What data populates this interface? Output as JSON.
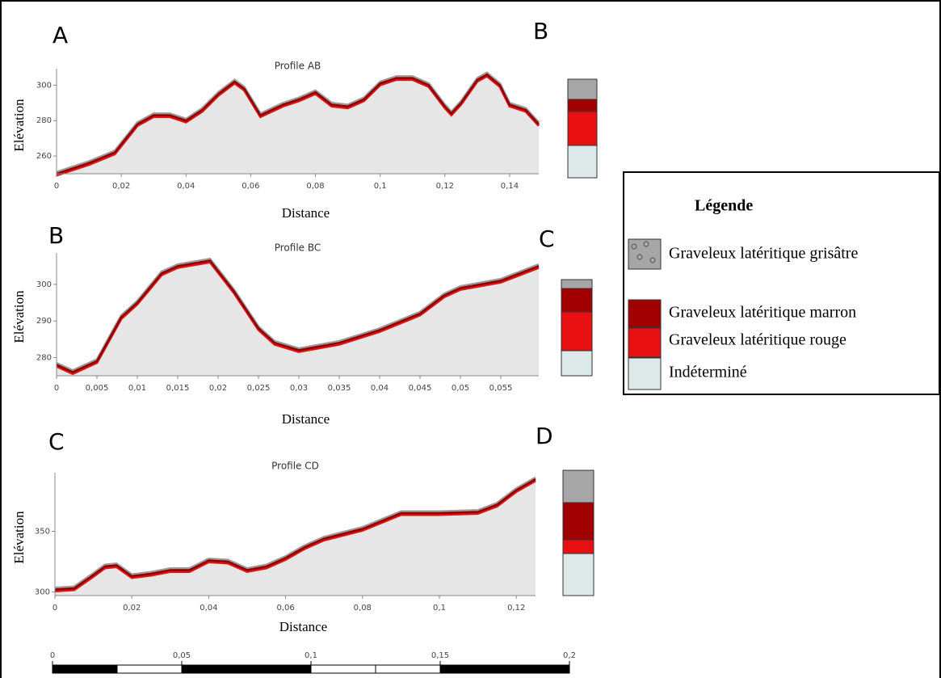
{
  "chart_data": [
    {
      "type": "area",
      "title": "Profile AB",
      "corner_labels": [
        "A",
        "B"
      ],
      "xlabel": "Distance",
      "ylabel": "Elévation",
      "x": [
        0,
        0.01,
        0.018,
        0.025,
        0.03,
        0.035,
        0.04,
        0.045,
        0.05,
        0.055,
        0.058,
        0.063,
        0.07,
        0.075,
        0.08,
        0.085,
        0.09,
        0.095,
        0.1,
        0.105,
        0.11,
        0.115,
        0.12,
        0.122,
        0.125,
        0.13,
        0.133,
        0.137,
        0.14,
        0.145,
        0.149
      ],
      "values": [
        250,
        256,
        262,
        278,
        283,
        283,
        280,
        286,
        295,
        302,
        298,
        283,
        289,
        292,
        296,
        289,
        288,
        292,
        301,
        304,
        304,
        300,
        288,
        284,
        290,
        303,
        306,
        300,
        289,
        286,
        278
      ],
      "xlim": [
        0,
        0.149
      ],
      "ylim": [
        250,
        307
      ],
      "xticks": [
        0,
        {
          "value": 0.02,
          "label": "0,02"
        },
        {
          "value": 0.04,
          "label": "0,04"
        },
        {
          "value": 0.06,
          "label": "0,06"
        },
        {
          "value": 0.08,
          "label": "0,08"
        },
        {
          "value": 0.1,
          "label": "0,1"
        },
        {
          "value": 0.12,
          "label": "0,12"
        },
        {
          "value": 0.14,
          "label": "0,14"
        }
      ],
      "yticks": [
        260,
        280,
        300
      ],
      "color": "#e6e6e6"
    },
    {
      "type": "area",
      "title": "Profile BC",
      "corner_labels": [
        "B",
        "C"
      ],
      "xlabel": "Distance",
      "ylabel": "Elévation",
      "x": [
        0,
        0.002,
        0.005,
        0.008,
        0.01,
        0.013,
        0.015,
        0.019,
        0.022,
        0.025,
        0.027,
        0.03,
        0.035,
        0.04,
        0.045,
        0.048,
        0.05,
        0.055,
        0.0597
      ],
      "values": [
        278,
        276,
        279,
        291,
        295,
        303,
        305,
        306.5,
        298,
        288,
        284,
        282,
        284,
        287.5,
        292,
        297,
        299,
        301,
        305
      ],
      "xlim": [
        0,
        0.0597
      ],
      "ylim": [
        275,
        307.5
      ],
      "xticks": [
        0,
        {
          "value": 0.005,
          "label": "0,005"
        },
        {
          "value": 0.01,
          "label": "0,01"
        },
        {
          "value": 0.015,
          "label": "0,015"
        },
        {
          "value": 0.02,
          "label": "0,02"
        },
        {
          "value": 0.025,
          "label": "0,025"
        },
        {
          "value": 0.03,
          "label": "0,03"
        },
        {
          "value": 0.035,
          "label": "0,035"
        },
        {
          "value": 0.04,
          "label": "0,04"
        },
        {
          "value": 0.045,
          "label": "0,045"
        },
        {
          "value": 0.05,
          "label": "0,05"
        },
        {
          "value": 0.055,
          "label": "0,055"
        }
      ],
      "yticks": [
        280,
        290,
        300
      ],
      "color": "#e6e6e6"
    },
    {
      "type": "area",
      "title": "Profile CD",
      "corner_labels": [
        "C",
        "D"
      ],
      "xlabel": "Distance",
      "ylabel": "Elévation",
      "x": [
        0,
        0.005,
        0.01,
        0.013,
        0.016,
        0.02,
        0.025,
        0.03,
        0.035,
        0.04,
        0.045,
        0.05,
        0.055,
        0.06,
        0.065,
        0.07,
        0.08,
        0.09,
        0.1,
        0.11,
        0.115,
        0.12,
        0.125
      ],
      "values": [
        302,
        303,
        314,
        321,
        322,
        313,
        315,
        318,
        318,
        326,
        325,
        318,
        321,
        328,
        337,
        344,
        352,
        365,
        365,
        366,
        372,
        384,
        393
      ],
      "xlim": [
        0,
        0.125
      ],
      "ylim": [
        297,
        395
      ],
      "xticks": [
        0,
        {
          "value": 0.02,
          "label": "0,02"
        },
        {
          "value": 0.04,
          "label": "0,04"
        },
        {
          "value": 0.06,
          "label": "0,06"
        },
        {
          "value": 0.08,
          "label": "0,08"
        },
        {
          "value": 0.1,
          "label": "0,1"
        },
        {
          "value": 0.12,
          "label": "0,12"
        }
      ],
      "yticks": [
        300,
        350
      ],
      "color": "#e6e6e6"
    }
  ],
  "legend": {
    "title": "Légende",
    "items": [
      {
        "label": "Graveleux latéritique grisâtre",
        "color": "#a6a6a6"
      },
      {
        "label": "Graveleux latéritique marron",
        "color": "#a00000"
      },
      {
        "label": "Graveleux latéritique rouge",
        "color": "#e81010"
      },
      {
        "label": "Indéterminé",
        "color": "#dde9e9"
      }
    ]
  },
  "scale_bar": {
    "xlim": [
      0,
      0.2
    ],
    "xticks": [
      0,
      {
        "value": 0.05,
        "label": "0,05"
      },
      {
        "value": 0.1,
        "label": "0,1"
      },
      {
        "value": 0.15,
        "label": "0,15"
      },
      {
        "value": 0.2,
        "label": "0,2"
      }
    ]
  }
}
